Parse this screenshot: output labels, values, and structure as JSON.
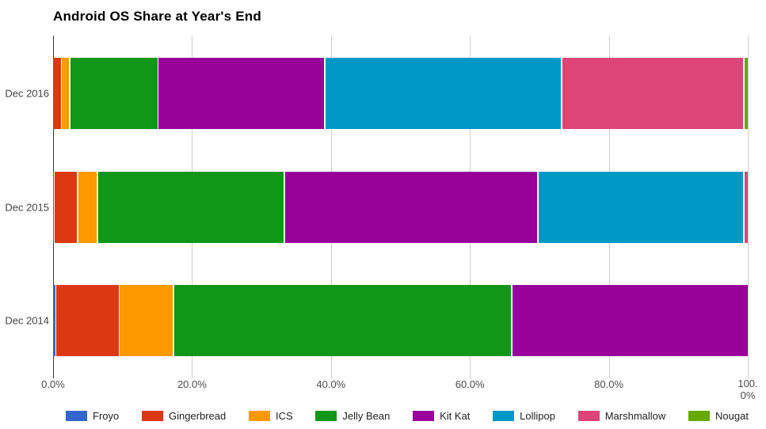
{
  "title": "Android OS Share at Year's End",
  "chart_data": {
    "type": "bar",
    "orientation": "horizontal",
    "stacked": true,
    "title": "Android OS Share at Year's End",
    "unit": "%",
    "categories": [
      "Dec 2016",
      "Dec 2015",
      "Dec 2014"
    ],
    "series": [
      {
        "name": "Froyo",
        "color": "#3366CC",
        "values": [
          0.1,
          0.2,
          0.5
        ]
      },
      {
        "name": "Gingerbread",
        "color": "#DC3912",
        "values": [
          1.2,
          3.4,
          9.1
        ]
      },
      {
        "name": "ICS",
        "color": "#FF9900",
        "values": [
          1.2,
          2.9,
          7.8
        ]
      },
      {
        "name": "Jelly Bean",
        "color": "#109618",
        "values": [
          12.7,
          26.9,
          48.7
        ]
      },
      {
        "name": "Kit Kat",
        "color": "#990099",
        "values": [
          24.0,
          36.5,
          33.9
        ]
      },
      {
        "name": "Lollipop",
        "color": "#0099C6",
        "values": [
          34.1,
          29.6,
          0
        ]
      },
      {
        "name": "Marshmallow",
        "color": "#DD4477",
        "values": [
          26.2,
          0.5,
          0
        ]
      },
      {
        "name": "Nougat",
        "color": "#66AA00",
        "values": [
          0.5,
          0,
          0
        ]
      }
    ],
    "x_axis": {
      "min": 0,
      "max": 100,
      "ticks": [
        "0.0%",
        "20.0%",
        "40.0%",
        "60.0%",
        "80.0%",
        "100.0%"
      ]
    },
    "legend_position": "bottom",
    "grid": true,
    "colors": {
      "axis_line": "#333333",
      "gridline": "#cccccc",
      "axis_text": "#444444"
    }
  }
}
